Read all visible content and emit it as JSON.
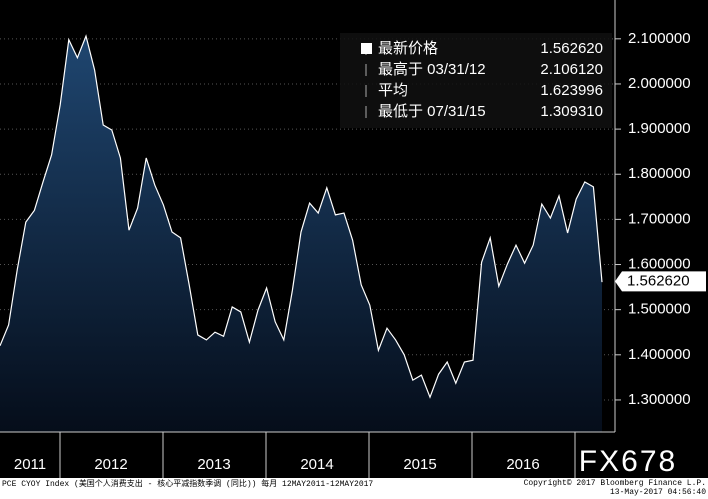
{
  "chart_data": {
    "type": "area",
    "series": [
      {
        "name": "PCE CYOY Index",
        "color": "#ffffff",
        "values": [
          1.42,
          1.466,
          1.588,
          1.694,
          1.72,
          1.783,
          1.843,
          1.954,
          2.098,
          2.058,
          2.106,
          2.031,
          1.909,
          1.898,
          1.836,
          1.676,
          1.725,
          1.836,
          1.776,
          1.732,
          1.672,
          1.659,
          1.555,
          1.444,
          1.433,
          1.45,
          1.441,
          1.506,
          1.495,
          1.428,
          1.499,
          1.548,
          1.473,
          1.433,
          1.543,
          1.672,
          1.736,
          1.714,
          1.77,
          1.71,
          1.714,
          1.654,
          1.555,
          1.51,
          1.41,
          1.459,
          1.433,
          1.4,
          1.344,
          1.355,
          1.306,
          1.357,
          1.384,
          1.337,
          1.384,
          1.388,
          1.605,
          1.659,
          1.552,
          1.601,
          1.643,
          1.603,
          1.643,
          1.734,
          1.703,
          1.752,
          1.67,
          1.745,
          1.783,
          1.772,
          1.561
        ]
      }
    ],
    "years": [
      "2011",
      "2012",
      "2013",
      "2014",
      "2015",
      "2016"
    ],
    "ylim": [
      1.229,
      2.186
    ],
    "yticks": [
      {
        "value": 1.3,
        "label": "1.300000"
      },
      {
        "value": 1.4,
        "label": "1.400000"
      },
      {
        "value": 1.5,
        "label": "1.500000"
      },
      {
        "value": 1.6,
        "label": "1.600000"
      },
      {
        "value": 1.7,
        "label": "1.700000"
      },
      {
        "value": 1.8,
        "label": "1.800000"
      },
      {
        "value": 1.9,
        "label": "1.900000"
      },
      {
        "value": 2.0,
        "label": "2.000000"
      },
      {
        "value": 2.1,
        "label": "2.100000"
      }
    ],
    "grid": true,
    "stats": {
      "labels": [
        "最新价格",
        "最高于 03/31/12",
        "平均",
        "最低于 07/31/15"
      ],
      "values": [
        1.56262,
        2.10612,
        1.623996,
        1.30931
      ],
      "value_labels": [
        "1.562620",
        "2.106120",
        "1.623996",
        "1.309310"
      ]
    },
    "watermark": "FX678",
    "footer_left": "PCE CYOY Index (美国个人消费支出 - 核心平减指数季调 (同比)) 每月 12MAY2011-12MAY2017",
    "footer_right": [
      "Copyright© 2017 Bloomberg Finance L.P.",
      "13-May-2017 04:56:40"
    ]
  }
}
